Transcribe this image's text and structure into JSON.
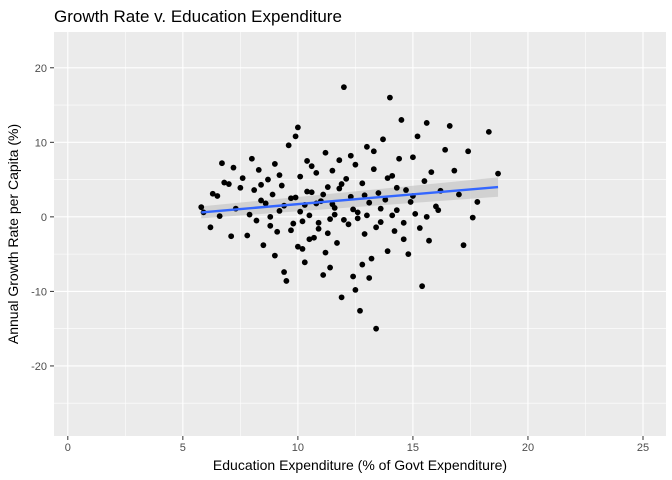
{
  "chart_data": {
    "type": "scatter",
    "title": "Growth Rate v. Education Expenditure",
    "xlabel": "Education Expenditure (% of Govt Expenditure)",
    "ylabel": "Annual Growth Rate per Capita (%)",
    "xlim": [
      -0.6,
      26.0
    ],
    "ylim": [
      -29.4,
      24.8
    ],
    "x_ticks": [
      0,
      5,
      10,
      15,
      20,
      25
    ],
    "y_ticks": [
      -20,
      -10,
      0,
      10,
      20
    ],
    "grid": true,
    "legend": "none",
    "colors": {
      "panel": "#ebebeb",
      "grid_major": "#ffffff",
      "points": "#000000",
      "fit_line": "#3366ff",
      "confidence_band": "#c8c8c8"
    },
    "trend_line": {
      "method": "linear",
      "x": [
        5.8,
        18.7
      ],
      "y": [
        0.6,
        4.0
      ],
      "band_lower": [
        -0.2,
        2.7
      ],
      "band_upper": [
        1.4,
        5.3
      ]
    },
    "points": [
      [
        5.8,
        1.3
      ],
      [
        5.9,
        0.6
      ],
      [
        6.2,
        -1.4
      ],
      [
        6.3,
        3.1
      ],
      [
        6.5,
        2.8
      ],
      [
        6.6,
        0.1
      ],
      [
        6.7,
        7.2
      ],
      [
        6.8,
        4.6
      ],
      [
        7.0,
        4.4
      ],
      [
        7.1,
        -2.6
      ],
      [
        7.2,
        6.6
      ],
      [
        7.3,
        1.1
      ],
      [
        7.5,
        3.9
      ],
      [
        7.6,
        5.2
      ],
      [
        7.8,
        -2.5
      ],
      [
        7.9,
        0.3
      ],
      [
        8.0,
        7.8
      ],
      [
        8.1,
        3.6
      ],
      [
        8.2,
        -0.5
      ],
      [
        8.3,
        6.3
      ],
      [
        8.4,
        2.2
      ],
      [
        8.5,
        -3.8
      ],
      [
        8.6,
        1.8
      ],
      [
        8.7,
        5.0
      ],
      [
        8.8,
        -1.2
      ],
      [
        8.9,
        3.0
      ],
      [
        9.0,
        7.1
      ],
      [
        9.1,
        -2.0
      ],
      [
        9.2,
        0.8
      ],
      [
        9.3,
        4.2
      ],
      [
        9.4,
        -7.4
      ],
      [
        9.5,
        -8.6
      ],
      [
        9.6,
        9.6
      ],
      [
        9.7,
        2.5
      ],
      [
        9.8,
        -0.9
      ],
      [
        9.9,
        10.8
      ],
      [
        10.0,
        12.0
      ],
      [
        10.1,
        5.4
      ],
      [
        10.2,
        -4.3
      ],
      [
        10.3,
        1.6
      ],
      [
        10.4,
        7.5
      ],
      [
        10.5,
        0.2
      ],
      [
        10.6,
        3.3
      ],
      [
        10.7,
        -2.8
      ],
      [
        10.8,
        5.9
      ],
      [
        10.9,
        -1.6
      ],
      [
        11.0,
        2.1
      ],
      [
        11.1,
        -7.8
      ],
      [
        11.2,
        8.6
      ],
      [
        11.3,
        4.0
      ],
      [
        11.4,
        -0.3
      ],
      [
        11.5,
        6.2
      ],
      [
        11.6,
        1.2
      ],
      [
        11.7,
        -3.5
      ],
      [
        11.8,
        3.8
      ],
      [
        11.9,
        -10.8
      ],
      [
        12.0,
        17.4
      ],
      [
        12.1,
        5.1
      ],
      [
        12.2,
        -1.0
      ],
      [
        12.3,
        2.7
      ],
      [
        12.4,
        -8.0
      ],
      [
        12.5,
        7.0
      ],
      [
        12.6,
        0.6
      ],
      [
        12.7,
        -12.6
      ],
      [
        12.8,
        4.5
      ],
      [
        12.9,
        -2.3
      ],
      [
        13.0,
        9.4
      ],
      [
        13.1,
        1.9
      ],
      [
        13.2,
        -5.6
      ],
      [
        13.3,
        6.4
      ],
      [
        13.4,
        -15.0
      ],
      [
        13.5,
        3.2
      ],
      [
        13.6,
        -0.7
      ],
      [
        13.7,
        10.4
      ],
      [
        13.8,
        2.3
      ],
      [
        13.9,
        -4.6
      ],
      [
        14.0,
        16.0
      ],
      [
        14.1,
        5.5
      ],
      [
        14.2,
        -1.9
      ],
      [
        14.3,
        0.9
      ],
      [
        14.4,
        7.8
      ],
      [
        14.5,
        13.0
      ],
      [
        14.6,
        -3.0
      ],
      [
        14.7,
        3.6
      ],
      [
        14.8,
        -5.0
      ],
      [
        14.9,
        2.0
      ],
      [
        15.0,
        8.0
      ],
      [
        15.1,
        0.4
      ],
      [
        15.2,
        10.8
      ],
      [
        15.3,
        -1.5
      ],
      [
        15.4,
        -9.3
      ],
      [
        15.5,
        4.8
      ],
      [
        15.6,
        12.6
      ],
      [
        15.7,
        -3.2
      ],
      [
        15.8,
        6.0
      ],
      [
        16.0,
        1.4
      ],
      [
        16.2,
        3.5
      ],
      [
        16.4,
        9.0
      ],
      [
        16.6,
        12.2
      ],
      [
        16.8,
        6.2
      ],
      [
        17.0,
        3.0
      ],
      [
        17.2,
        -3.8
      ],
      [
        17.4,
        8.8
      ],
      [
        17.6,
        -0.1
      ],
      [
        17.8,
        2.0
      ],
      [
        18.3,
        11.4
      ],
      [
        18.7,
        5.8
      ],
      [
        8.8,
        0.0
      ],
      [
        9.7,
        -1.8
      ],
      [
        10.5,
        -3.0
      ],
      [
        11.3,
        -2.2
      ],
      [
        12.0,
        -0.4
      ],
      [
        12.4,
        1.0
      ],
      [
        13.0,
        0.2
      ],
      [
        13.4,
        -1.4
      ],
      [
        10.1,
        0.7
      ],
      [
        10.8,
        1.8
      ],
      [
        11.6,
        0.3
      ],
      [
        9.4,
        1.5
      ],
      [
        12.9,
        2.9
      ],
      [
        10.4,
        3.4
      ],
      [
        11.9,
        4.4
      ],
      [
        10.9,
        -0.8
      ],
      [
        11.1,
        3.0
      ],
      [
        9.9,
        2.6
      ],
      [
        12.6,
        -0.2
      ],
      [
        11.5,
        1.7
      ],
      [
        10.2,
        -0.6
      ],
      [
        13.6,
        1.1
      ],
      [
        14.1,
        0.2
      ],
      [
        8.4,
        4.3
      ],
      [
        9.2,
        5.6
      ],
      [
        10.6,
        6.8
      ],
      [
        11.8,
        7.6
      ],
      [
        12.3,
        8.2
      ],
      [
        13.3,
        8.8
      ],
      [
        9.0,
        -5.2
      ],
      [
        10.3,
        -6.1
      ],
      [
        11.4,
        -6.8
      ],
      [
        12.8,
        -6.4
      ],
      [
        13.1,
        -8.2
      ],
      [
        12.5,
        -9.8
      ],
      [
        10.0,
        -4.0
      ],
      [
        11.2,
        -4.8
      ],
      [
        14.6,
        -0.8
      ],
      [
        15.6,
        0.0
      ],
      [
        16.1,
        0.9
      ],
      [
        15.0,
        2.8
      ],
      [
        14.3,
        3.9
      ],
      [
        13.9,
        5.2
      ]
    ]
  }
}
